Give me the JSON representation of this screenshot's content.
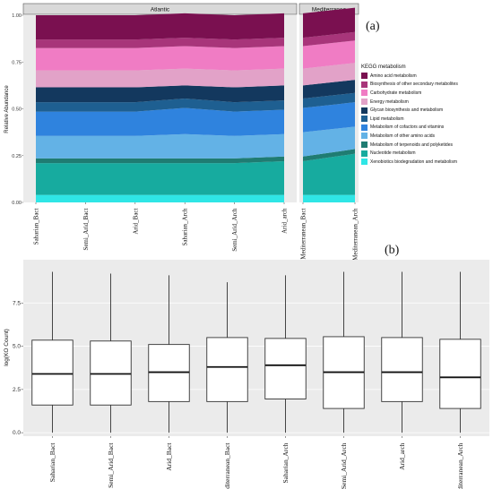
{
  "chart_data": [
    {
      "type": "area",
      "panel_label": "(a)",
      "ylabel": "Relative Abundance",
      "yticks": [
        "0.00",
        "0.25",
        "0.50",
        "0.75",
        "1.00"
      ],
      "ylim": [
        0,
        1
      ],
      "facets": [
        {
          "name": "Atlantic",
          "categories": [
            "Saharian_Bact",
            "Semi_Arid_Bact",
            "Arid_Bact",
            "Saharian_Arch",
            "Semi_Arid_Arch",
            "Arid_arch"
          ]
        },
        {
          "name": "Mediterranea",
          "categories": [
            "Mediterranean_Bact",
            "Mediterranean_Arch"
          ]
        }
      ],
      "legend_title": "KEGG metabolism",
      "legend_position": "right",
      "series": [
        {
          "name": "Amino acid metabolism",
          "color": "#7a1050",
          "values": [
            0.13,
            0.13,
            0.13,
            0.13,
            0.13,
            0.13,
            0.13,
            0.13
          ]
        },
        {
          "name": "Biosynthesis of other secondary metabolites",
          "color": "#a8357a",
          "values": [
            0.045,
            0.045,
            0.045,
            0.045,
            0.045,
            0.045,
            0.045,
            0.045
          ]
        },
        {
          "name": "Carbohydrate metabolism",
          "color": "#f07cc4",
          "values": [
            0.12,
            0.12,
            0.12,
            0.12,
            0.12,
            0.12,
            0.12,
            0.12
          ]
        },
        {
          "name": "Energy metabolism",
          "color": "#e2a2c8",
          "values": [
            0.09,
            0.09,
            0.09,
            0.09,
            0.09,
            0.09,
            0.09,
            0.09
          ]
        },
        {
          "name": "Glycan biosynthesis and metabolism",
          "color": "#13385e",
          "values": [
            0.08,
            0.08,
            0.08,
            0.07,
            0.08,
            0.08,
            0.07,
            0.07
          ]
        },
        {
          "name": "Lipid metabolism",
          "color": "#1e5f91",
          "values": [
            0.05,
            0.05,
            0.05,
            0.05,
            0.05,
            0.05,
            0.05,
            0.05
          ]
        },
        {
          "name": "Metabolism of cofactors and vitamins",
          "color": "#2f83de",
          "values": [
            0.13,
            0.13,
            0.13,
            0.14,
            0.13,
            0.13,
            0.13,
            0.13
          ]
        },
        {
          "name": "Metabolism of other amino acids",
          "color": "#63b2e6",
          "values": [
            0.12,
            0.12,
            0.12,
            0.13,
            0.12,
            0.12,
            0.13,
            0.12
          ]
        },
        {
          "name": "Metabolism of terpenoids and polyketides",
          "color": "#1f7c72",
          "values": [
            0.025,
            0.025,
            0.025,
            0.025,
            0.025,
            0.025,
            0.025,
            0.025
          ]
        },
        {
          "name": "Nucleotide metabolism",
          "color": "#17ab9f",
          "values": [
            0.17,
            0.17,
            0.17,
            0.17,
            0.17,
            0.18,
            0.18,
            0.22
          ]
        },
        {
          "name": "Xenobiotics biodegradation and metabolism",
          "color": "#2fe6e6",
          "values": [
            0.04,
            0.04,
            0.04,
            0.04,
            0.04,
            0.04,
            0.04,
            0.04
          ]
        }
      ]
    },
    {
      "type": "box",
      "panel_label": "(b)",
      "ylabel": "log(KO Count)",
      "yticks": [
        "0.0",
        "2.5",
        "5.0",
        "7.5"
      ],
      "ylim": [
        -0.2,
        10
      ],
      "categories": [
        "Saharian_Bact",
        "Semi_Arid_Bact",
        "Arid_Bact",
        "Mediterranean_Bact",
        "Saharian_Arch",
        "Semi_Arid_Arch",
        "Arid_arch",
        "Mediterranean_Arch"
      ],
      "boxes": [
        {
          "min": 0.0,
          "q1": 1.6,
          "median": 3.4,
          "q3": 5.35,
          "max": 9.3
        },
        {
          "min": 0.0,
          "q1": 1.6,
          "median": 3.4,
          "q3": 5.3,
          "max": 9.2
        },
        {
          "min": 0.0,
          "q1": 1.8,
          "median": 3.5,
          "q3": 5.1,
          "max": 9.1
        },
        {
          "min": 0.0,
          "q1": 1.8,
          "median": 3.8,
          "q3": 5.5,
          "max": 8.7
        },
        {
          "min": 0.0,
          "q1": 1.95,
          "median": 3.9,
          "q3": 5.45,
          "max": 9.1
        },
        {
          "min": 0.0,
          "q1": 1.4,
          "median": 3.5,
          "q3": 5.55,
          "max": 9.3
        },
        {
          "min": 0.0,
          "q1": 1.8,
          "median": 3.5,
          "q3": 5.5,
          "max": 9.3
        },
        {
          "min": 0.0,
          "q1": 1.4,
          "median": 3.2,
          "q3": 5.4,
          "max": 9.3
        }
      ]
    }
  ]
}
